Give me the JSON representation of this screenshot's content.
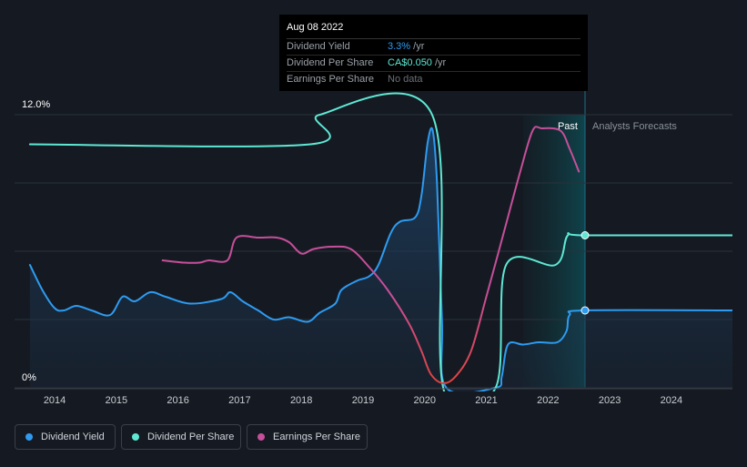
{
  "tooltip": {
    "date": "Aug 08 2022",
    "rows": [
      {
        "label": "Dividend Yield",
        "value": "3.3%",
        "unit": " /yr",
        "color": "#2e9bf0"
      },
      {
        "label": "Dividend Per Share",
        "value": "CA$0.050",
        "unit": " /yr",
        "color": "#5ee8d4"
      },
      {
        "label": "Earnings Per Share",
        "value": "No data",
        "unit": "",
        "color": "#6b7079"
      }
    ]
  },
  "regions": {
    "past_label": "Past",
    "forecast_label": "Analysts Forecasts"
  },
  "legend": [
    {
      "label": "Dividend Yield",
      "color": "#2e9bf0"
    },
    {
      "label": "Dividend Per Share",
      "color": "#5ee8d4"
    },
    {
      "label": "Earnings Per Share",
      "color": "#c64f9a"
    }
  ],
  "chart_data": {
    "type": "line",
    "y_tick_labels": [
      "12.0%",
      "0%"
    ],
    "x_tick_labels": [
      "2014",
      "2015",
      "2016",
      "2017",
      "2018",
      "2019",
      "2020",
      "2021",
      "2022",
      "2023",
      "2024"
    ],
    "ylim": [
      0,
      12
    ],
    "xlim": [
      2013.35,
      2024.99
    ],
    "grid": true,
    "divider_x": 2022.6,
    "series": [
      {
        "name": "Dividend Yield",
        "color": "#2e9bf0",
        "area": true,
        "points": [
          [
            2013.6,
            5.4
          ],
          [
            2013.8,
            4.3
          ],
          [
            2014.0,
            3.5
          ],
          [
            2014.15,
            3.4
          ],
          [
            2014.35,
            3.6
          ],
          [
            2014.6,
            3.4
          ],
          [
            2014.9,
            3.2
          ],
          [
            2015.1,
            4.0
          ],
          [
            2015.3,
            3.8
          ],
          [
            2015.55,
            4.2
          ],
          [
            2015.8,
            4.0
          ],
          [
            2016.2,
            3.7
          ],
          [
            2016.7,
            3.9
          ],
          [
            2016.85,
            4.2
          ],
          [
            2017.05,
            3.8
          ],
          [
            2017.3,
            3.4
          ],
          [
            2017.55,
            3.0
          ],
          [
            2017.8,
            3.1
          ],
          [
            2018.1,
            2.9
          ],
          [
            2018.3,
            3.3
          ],
          [
            2018.55,
            3.7
          ],
          [
            2018.65,
            4.3
          ],
          [
            2018.9,
            4.7
          ],
          [
            2019.1,
            4.9
          ],
          [
            2019.25,
            5.4
          ],
          [
            2019.45,
            6.8
          ],
          [
            2019.6,
            7.3
          ],
          [
            2019.85,
            7.5
          ],
          [
            2019.95,
            8.5
          ],
          [
            2020.05,
            10.8
          ],
          [
            2020.13,
            11.3
          ],
          [
            2020.2,
            9.0
          ],
          [
            2020.28,
            3.0
          ],
          [
            2020.35,
            0.0
          ],
          [
            2021.15,
            0.0
          ],
          [
            2021.25,
            0.5
          ],
          [
            2021.35,
            1.9
          ],
          [
            2021.6,
            1.9
          ],
          [
            2021.85,
            2.0
          ],
          [
            2022.15,
            2.0
          ],
          [
            2022.3,
            2.5
          ],
          [
            2022.35,
            3.2
          ],
          [
            2022.6,
            3.4
          ],
          [
            2024.99,
            3.4
          ]
        ]
      },
      {
        "name": "Dividend Per Share",
        "color": "#5ee8d4",
        "area": false,
        "points": [
          [
            2013.6,
            10.7
          ],
          [
            2018.15,
            10.7
          ],
          [
            2018.3,
            12.0
          ],
          [
            2020.12,
            12.0
          ],
          [
            2020.3,
            0.0
          ],
          [
            2021.15,
            0.0
          ],
          [
            2021.32,
            5.4
          ],
          [
            2022.12,
            5.4
          ],
          [
            2022.32,
            6.7
          ],
          [
            2022.6,
            6.7
          ],
          [
            2024.99,
            6.7
          ]
        ]
      },
      {
        "name": "Earnings Per Share",
        "color": "#c64f9a",
        "area": false,
        "points": [
          [
            2015.75,
            5.6
          ],
          [
            2016.1,
            5.5
          ],
          [
            2016.35,
            5.5
          ],
          [
            2016.5,
            5.6
          ],
          [
            2016.8,
            5.6
          ],
          [
            2016.95,
            6.6
          ],
          [
            2017.3,
            6.6
          ],
          [
            2017.6,
            6.6
          ],
          [
            2017.8,
            6.4
          ],
          [
            2018.0,
            5.9
          ],
          [
            2018.2,
            6.1
          ],
          [
            2018.5,
            6.2
          ],
          [
            2018.8,
            6.1
          ],
          [
            2019.1,
            5.3
          ],
          [
            2019.4,
            4.3
          ],
          [
            2019.75,
            2.8
          ],
          [
            2019.95,
            1.6
          ],
          [
            2020.1,
            0.6
          ],
          [
            2020.3,
            0.2
          ],
          [
            2020.5,
            0.5
          ],
          [
            2020.75,
            1.6
          ],
          [
            2021.0,
            4.0
          ],
          [
            2021.3,
            7.0
          ],
          [
            2021.55,
            9.5
          ],
          [
            2021.75,
            11.3
          ],
          [
            2021.9,
            11.4
          ],
          [
            2022.2,
            11.3
          ],
          [
            2022.35,
            10.5
          ],
          [
            2022.5,
            9.5
          ]
        ]
      }
    ],
    "markers": [
      {
        "x": 2022.6,
        "y": 6.7,
        "color": "#5ee8d4"
      },
      {
        "x": 2022.6,
        "y": 3.4,
        "color": "#2e9bf0"
      }
    ]
  }
}
